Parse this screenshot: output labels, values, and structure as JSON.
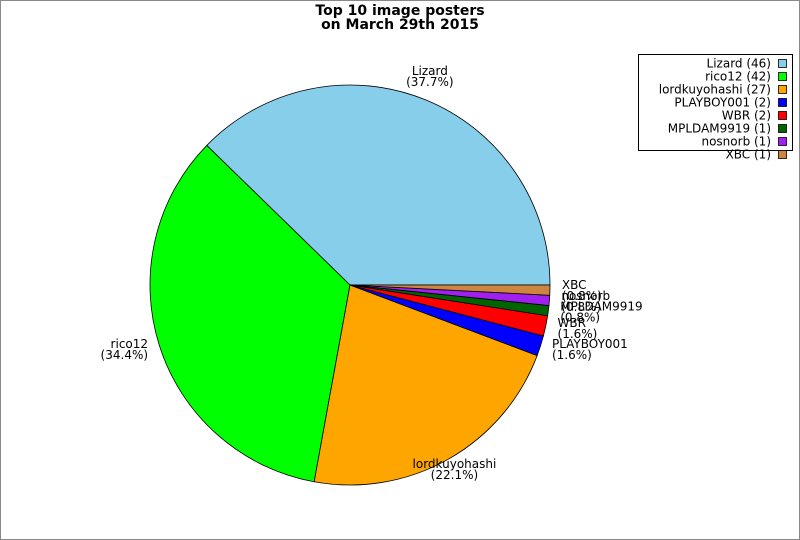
{
  "chart_data": {
    "type": "pie",
    "title": [
      "Top 10 image posters",
      "on March 29th 2015"
    ],
    "series": [
      {
        "name": "Lizard",
        "value": 46,
        "color": "#87ceeb",
        "legend_label": "Lizard (46)",
        "percent_label": "(37.7%)"
      },
      {
        "name": "rico12",
        "value": 42,
        "color": "#00ff00",
        "legend_label": "rico12 (42)",
        "percent_label": "(34.4%)"
      },
      {
        "name": "lordkuyohashi",
        "value": 27,
        "color": "#ffa500",
        "legend_label": "lordkuyohashi (27)",
        "percent_label": "(22.1%)"
      },
      {
        "name": "PLAYBOY001",
        "value": 2,
        "color": "#0000ff",
        "legend_label": "PLAYBOY001 (2)",
        "percent_label": "(1.6%)"
      },
      {
        "name": "WBR",
        "value": 2,
        "color": "#ff0000",
        "legend_label": "WBR (2)",
        "percent_label": "(1.6%)"
      },
      {
        "name": "MPLDAM9919",
        "value": 1,
        "color": "#006400",
        "legend_label": "MPLDAM9919 (1)",
        "percent_label": "(0.8%)"
      },
      {
        "name": "nosnorb",
        "value": 1,
        "color": "#a020f0",
        "legend_label": "nosnorb (1)",
        "percent_label": "(0.8%)"
      },
      {
        "name": "XBC",
        "value": 1,
        "color": "#cd853f",
        "legend_label": "XBC (1)",
        "percent_label": "(0.8%)"
      }
    ],
    "legend": "upper right"
  }
}
